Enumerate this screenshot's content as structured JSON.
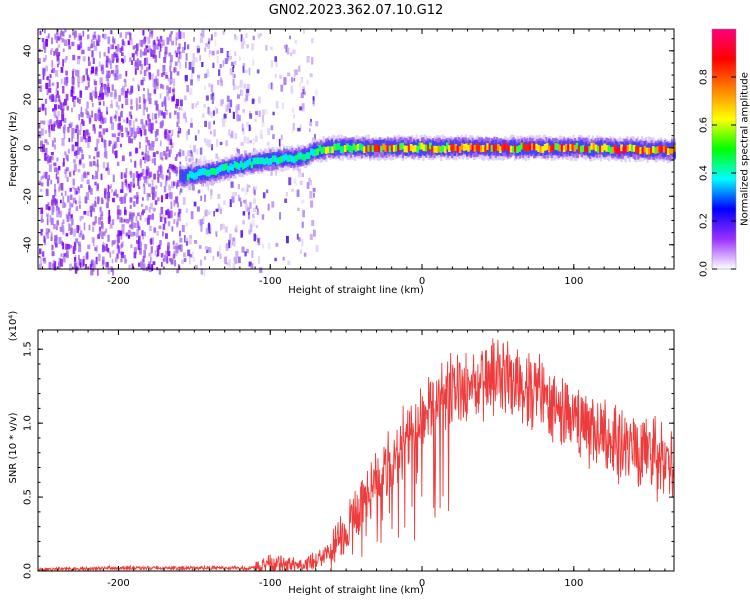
{
  "figure": {
    "title": "GN02.2023.362.07.10.G12"
  },
  "chart_data": [
    {
      "type": "heatmap",
      "xlabel": "Height of straight line (km)",
      "ylabel": "Frequency (Hz)",
      "xlim": [
        -253,
        166
      ],
      "ylim": [
        -50,
        49
      ],
      "xticks": [
        -200,
        -100,
        0,
        100
      ],
      "yticks": [
        -40,
        -20,
        0,
        20,
        40
      ],
      "colorbar": {
        "label": "Normalized spectral amplitude",
        "range": [
          0,
          1
        ],
        "ticks": [
          "0.0",
          "0.2",
          "0.4",
          "0.6",
          "0.8"
        ],
        "colors": [
          "#ffffff",
          "#9b30ff",
          "#0000ff",
          "#00ffff",
          "#00ff00",
          "#ffff00",
          "#ff8000",
          "#ff0000",
          "#ff0080"
        ]
      },
      "signal_track": [
        {
          "x": -160,
          "y": -12
        },
        {
          "x": -140,
          "y": -10
        },
        {
          "x": -120,
          "y": -7
        },
        {
          "x": -100,
          "y": -5
        },
        {
          "x": -80,
          "y": -4
        },
        {
          "x": -70,
          "y": -1
        },
        {
          "x": -60,
          "y": 0
        },
        {
          "x": -40,
          "y": 0
        },
        {
          "x": 0,
          "y": 0
        },
        {
          "x": 50,
          "y": 0
        },
        {
          "x": 100,
          "y": 0
        },
        {
          "x": 166,
          "y": -1
        }
      ]
    },
    {
      "type": "line",
      "xlabel": "Height of straight line (km)",
      "ylabel": "SNR (10 * v/v)",
      "y_multiplier": "(x10⁴)",
      "xlim": [
        -253,
        166
      ],
      "ylim": [
        0,
        1.63
      ],
      "xticks": [
        -200,
        -100,
        0,
        100
      ],
      "yticks": [
        "0.0",
        "0.5",
        "1.0",
        "1.5"
      ],
      "series": [
        {
          "color": "#ee3b3b",
          "envelope": {
            "x": [
              -253,
              -200,
              -150,
              -110,
              -100,
              -80,
              -70,
              -60,
              -50,
              -40,
              -30,
              -20,
              -10,
              0,
              10,
              20,
              30,
              40,
              50,
              60,
              70,
              80,
              100,
              120,
              140,
              166
            ],
            "y": [
              0.01,
              0.02,
              0.02,
              0.02,
              0.05,
              0.05,
              0.06,
              0.15,
              0.3,
              0.45,
              0.6,
              0.75,
              0.9,
              1.05,
              1.15,
              1.22,
              1.25,
              1.28,
              1.3,
              1.27,
              1.22,
              1.18,
              1.05,
              0.92,
              0.82,
              0.7
            ]
          }
        }
      ]
    }
  ]
}
